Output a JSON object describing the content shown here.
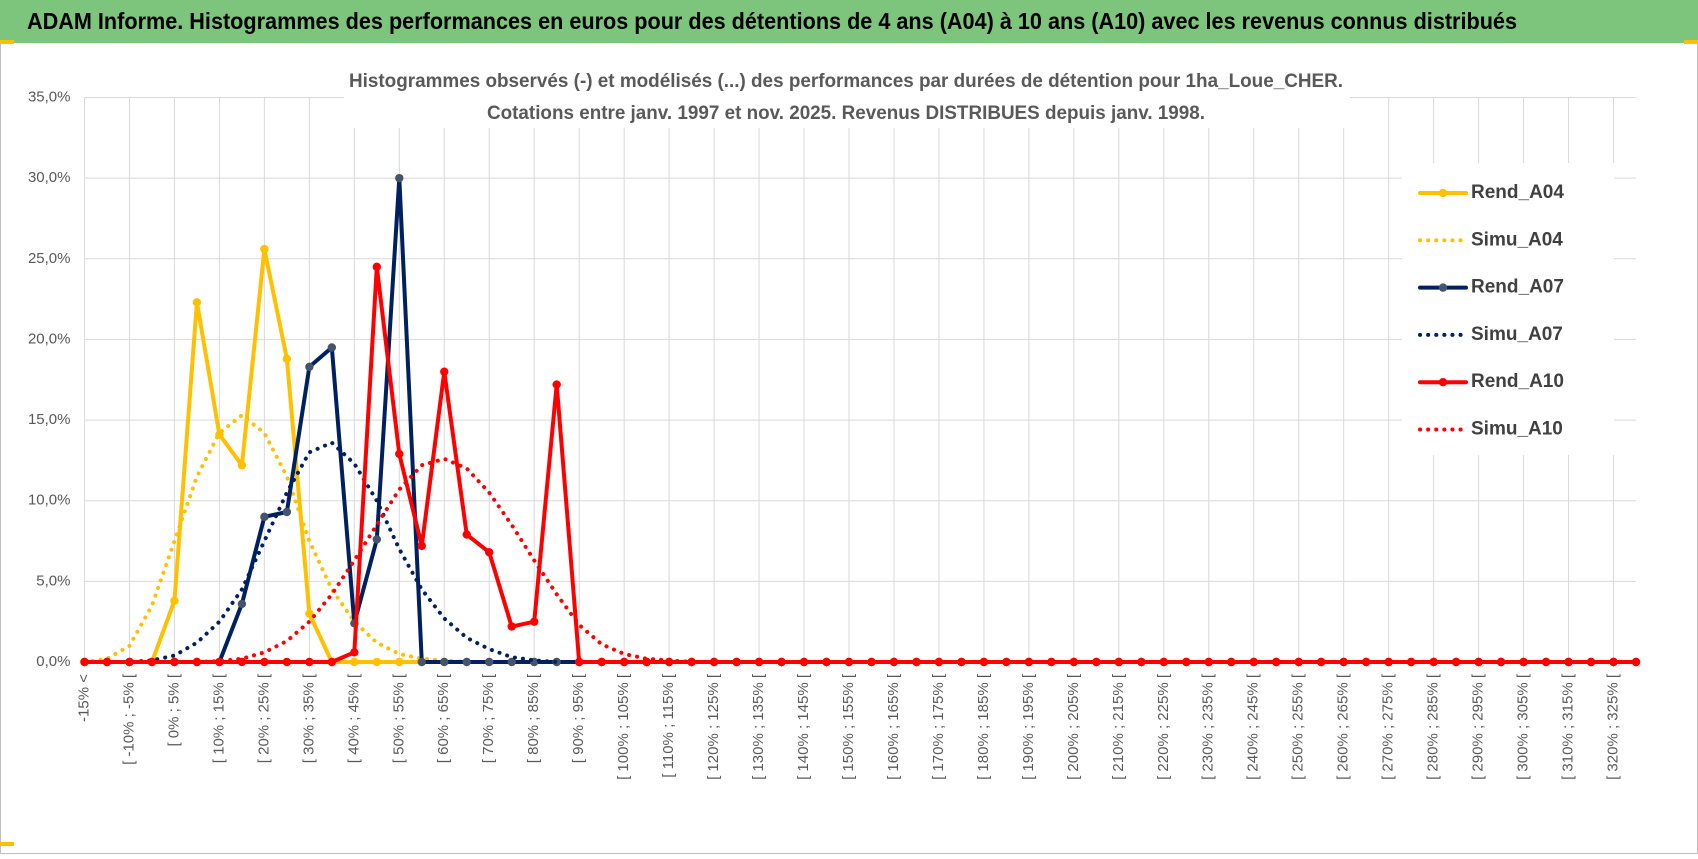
{
  "header": {
    "title": "ADAM Informe. Histogrammes des performances en euros pour des détentions de 4 ans (A04) à 10 ans (A10) avec les revenus connus distribués"
  },
  "chart_data": {
    "type": "line",
    "title": "Histogrammes observés (-) et modélisés (...) des performances par durées de détention pour 1ha_Loue_CHER.",
    "subtitle": "Cotations entre janv. 1997 et nov. 2025. Revenus DISTRIBUES depuis janv. 1998.",
    "categories": [
      "-15% <",
      null,
      "[ -10% ; -5% [",
      null,
      "[ 0% ; 5% [",
      null,
      "[ 10% ; 15% [",
      null,
      "[ 20% ; 25% [",
      null,
      "[ 30% ; 35% [",
      null,
      "[ 40% ; 45% [",
      null,
      "[ 50% ; 55% [",
      null,
      "[ 60% ; 65% [",
      null,
      "[ 70% ; 75% [",
      null,
      "[ 80% ; 85% [",
      null,
      "[ 90% ; 95% [",
      null,
      "[ 100% ; 105% [",
      null,
      "[ 110% ; 115% [",
      null,
      "[ 120% ; 125% [",
      null,
      "[ 130% ; 135% [",
      null,
      "[ 140% ; 145% [",
      null,
      "[ 150% ; 155% [",
      null,
      "[ 160% ; 165% [",
      null,
      "[ 170% ; 175% [",
      null,
      "[ 180% ; 185% [",
      null,
      "[ 190% ; 195% [",
      null,
      "[ 200% ; 205% [",
      null,
      "[ 210% ; 215% [",
      null,
      "[ 220% ; 225% [",
      null,
      "[ 230% ; 235% [",
      null,
      "[ 240% ; 245% [",
      null,
      "[ 250% ; 255% [",
      null,
      "[ 260% ; 265% [",
      null,
      "[ 270% ; 275% [",
      null,
      "[ 280% ; 285% [",
      null,
      "[ 290% ; 295% [",
      null,
      "[ 300% ; 305% [",
      null,
      "[ 310% ; 315% [",
      null,
      "[ 320% ; 325% [",
      null
    ],
    "series": [
      {
        "name": "Rend_A04",
        "color": "#ffc000",
        "marker_color": "#ffc000",
        "style": "solid",
        "marker": true,
        "values": [
          0,
          0,
          0,
          0,
          3.8,
          22.3,
          14.1,
          12.2,
          25.6,
          18.8,
          3.0,
          0,
          0,
          0,
          0,
          0,
          0,
          0,
          0,
          0,
          0,
          0,
          0,
          0,
          0,
          0,
          0,
          0,
          0,
          0,
          0,
          0,
          0,
          0,
          0,
          0,
          0,
          0,
          0,
          0,
          0,
          0,
          0,
          0,
          0,
          0,
          0,
          0,
          0,
          0,
          0,
          0,
          0,
          0,
          0,
          0,
          0,
          0,
          0,
          0,
          0,
          0,
          0,
          0,
          0,
          0,
          0,
          0,
          0,
          0
        ]
      },
      {
        "name": "Simu_A04",
        "color": "#ffc000",
        "style": "dotted",
        "marker": false,
        "values": [
          0,
          0.2,
          1.0,
          3.5,
          7.5,
          11.5,
          14.2,
          15.3,
          14.2,
          11.5,
          7.5,
          4.5,
          2.5,
          1.2,
          0.5,
          0.2,
          0.1,
          0,
          0,
          0,
          0,
          0,
          0,
          0,
          0,
          0,
          0,
          0,
          0,
          0,
          0,
          0,
          0,
          0,
          0,
          0,
          0,
          0,
          0,
          0,
          0,
          0,
          0,
          0,
          0,
          0,
          0,
          0,
          0,
          0,
          0,
          0,
          0,
          0,
          0,
          0,
          0,
          0,
          0,
          0,
          0,
          0,
          0,
          0,
          0,
          0,
          0,
          0,
          0,
          0
        ]
      },
      {
        "name": "Rend_A07",
        "color": "#002060",
        "marker_color": "#44546a",
        "style": "solid",
        "marker": true,
        "values": [
          0,
          0,
          0,
          0,
          0,
          0,
          0,
          3.6,
          9.0,
          9.3,
          18.3,
          19.5,
          2.4,
          7.6,
          30.0,
          0,
          0,
          0,
          0,
          0,
          0,
          0,
          0,
          0,
          0,
          0,
          0,
          0,
          0,
          0,
          0,
          0,
          0,
          0,
          0,
          0,
          0,
          0,
          0,
          0,
          0,
          0,
          0,
          0,
          0,
          0,
          0,
          0,
          0,
          0,
          0,
          0,
          0,
          0,
          0,
          0,
          0,
          0,
          0,
          0,
          0,
          0,
          0,
          0,
          0,
          0,
          0,
          0,
          0,
          0
        ]
      },
      {
        "name": "Simu_A07",
        "color": "#002060",
        "style": "dotted",
        "marker": false,
        "values": [
          0,
          0,
          0,
          0.1,
          0.4,
          1.2,
          2.5,
          4.5,
          7.5,
          10.5,
          13.0,
          13.6,
          12.3,
          10.0,
          7.0,
          4.5,
          2.7,
          1.5,
          0.8,
          0.3,
          0.1,
          0,
          0,
          0,
          0,
          0,
          0,
          0,
          0,
          0,
          0,
          0,
          0,
          0,
          0,
          0,
          0,
          0,
          0,
          0,
          0,
          0,
          0,
          0,
          0,
          0,
          0,
          0,
          0,
          0,
          0,
          0,
          0,
          0,
          0,
          0,
          0,
          0,
          0,
          0,
          0,
          0,
          0,
          0,
          0,
          0,
          0,
          0,
          0,
          0
        ]
      },
      {
        "name": "Rend_A10",
        "color": "#ff0000",
        "marker_color": "#ff0000",
        "style": "solid",
        "marker": true,
        "values": [
          0,
          0,
          0,
          0,
          0,
          0,
          0,
          0,
          0,
          0,
          0,
          0,
          0.6,
          24.5,
          12.9,
          7.2,
          18.0,
          7.9,
          6.8,
          2.2,
          2.5,
          17.2,
          0,
          0,
          0,
          0,
          0,
          0,
          0,
          0,
          0,
          0,
          0,
          0,
          0,
          0,
          0,
          0,
          0,
          0,
          0,
          0,
          0,
          0,
          0,
          0,
          0,
          0,
          0,
          0,
          0,
          0,
          0,
          0,
          0,
          0,
          0,
          0,
          0,
          0,
          0,
          0,
          0,
          0,
          0,
          0,
          0,
          0,
          0,
          0
        ]
      },
      {
        "name": "Simu_A10",
        "color": "#ff0000",
        "style": "dotted",
        "marker": false,
        "values": [
          0,
          0,
          0,
          0,
          0,
          0,
          0.05,
          0.2,
          0.6,
          1.3,
          2.5,
          4.2,
          6.3,
          8.5,
          10.7,
          12.2,
          12.6,
          12.0,
          10.5,
          8.5,
          6.3,
          4.2,
          2.3,
          1.1,
          0.5,
          0.2,
          0.1,
          0,
          0,
          0,
          0,
          0,
          0,
          0,
          0,
          0,
          0,
          0,
          0,
          0,
          0,
          0,
          0,
          0,
          0,
          0,
          0,
          0,
          0,
          0,
          0,
          0,
          0,
          0,
          0,
          0,
          0,
          0,
          0,
          0,
          0,
          0,
          0,
          0,
          0,
          0,
          0,
          0,
          0,
          0
        ]
      }
    ],
    "ylim": [
      0,
      35
    ],
    "yticks": [
      {
        "value": 0,
        "label": "0,0%"
      },
      {
        "value": 5,
        "label": "5,0%"
      },
      {
        "value": 10,
        "label": "10,0%"
      },
      {
        "value": 15,
        "label": "15,0%"
      },
      {
        "value": 20,
        "label": "20,0%"
      },
      {
        "value": 25,
        "label": "25,0%"
      },
      {
        "value": 30,
        "label": "30,0%"
      },
      {
        "value": 35,
        "label": "35,0%"
      }
    ],
    "grid": true,
    "legend": "right"
  }
}
